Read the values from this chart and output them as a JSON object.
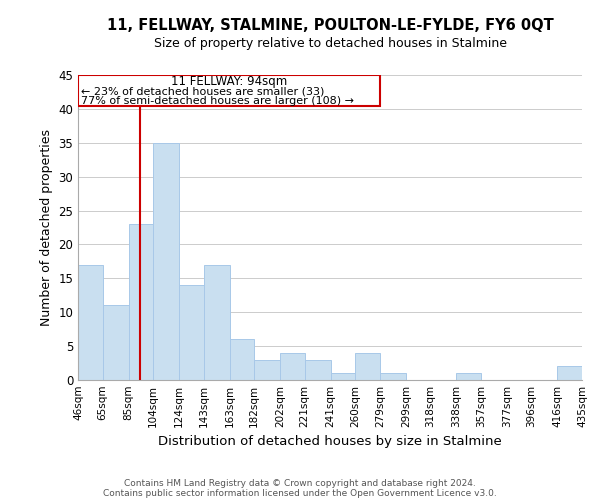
{
  "title": "11, FELLWAY, STALMINE, POULTON-LE-FYLDE, FY6 0QT",
  "subtitle": "Size of property relative to detached houses in Stalmine",
  "xlabel": "Distribution of detached houses by size in Stalmine",
  "ylabel": "Number of detached properties",
  "bar_color": "#c9dff0",
  "bar_edge_color": "#a8c8e8",
  "vline_x": 94,
  "vline_color": "#cc0000",
  "annotation_title": "11 FELLWAY: 94sqm",
  "annotation_line1": "← 23% of detached houses are smaller (33)",
  "annotation_line2": "77% of semi-detached houses are larger (108) →",
  "bins": [
    46,
    65,
    85,
    104,
    124,
    143,
    163,
    182,
    202,
    221,
    241,
    260,
    279,
    299,
    318,
    338,
    357,
    377,
    396,
    416,
    435
  ],
  "counts": [
    17,
    11,
    23,
    35,
    14,
    17,
    6,
    3,
    4,
    3,
    1,
    4,
    1,
    0,
    0,
    1,
    0,
    0,
    0,
    2
  ],
  "ylim": [
    0,
    45
  ],
  "yticks": [
    0,
    5,
    10,
    15,
    20,
    25,
    30,
    35,
    40,
    45
  ],
  "footer_line1": "Contains HM Land Registry data © Crown copyright and database right 2024.",
  "footer_line2": "Contains public sector information licensed under the Open Government Licence v3.0.",
  "background_color": "#ffffff",
  "grid_color": "#cccccc"
}
